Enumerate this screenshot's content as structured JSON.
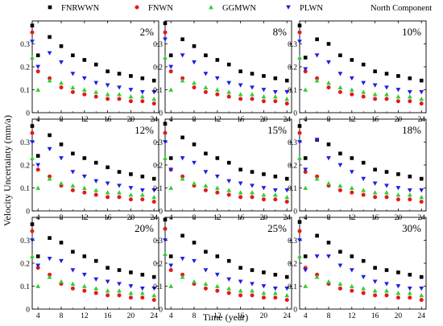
{
  "figure": {
    "ylabel": "Velocity Uncertainty (mm/a)",
    "xlabel": "Time  (year)",
    "component": "North Component"
  },
  "chart_data": {
    "type": "scatter",
    "layout": "3x3 small multiples",
    "x": [
      3,
      4,
      6,
      8,
      10,
      12,
      14,
      16,
      18,
      20,
      22,
      24
    ],
    "xticks": [
      4,
      8,
      12,
      16,
      20,
      24
    ],
    "xlim": [
      3,
      24.8
    ],
    "ylim": [
      0,
      0.4
    ],
    "yticks": [
      0,
      0.1,
      0.2,
      0.3
    ],
    "ytick_labels": [
      "0",
      "0.1",
      "0.2",
      "0.3"
    ],
    "grid": false,
    "legend_position": "top",
    "series_styles": [
      {
        "name": "FNRWWN",
        "marker": "square",
        "color": "#000000"
      },
      {
        "name": "FNWN",
        "marker": "circle",
        "color": "#e31a1c"
      },
      {
        "name": "GGMWN",
        "marker": "triangle-up",
        "color": "#33cc33"
      },
      {
        "name": "PLWN",
        "marker": "triangle-down",
        "color": "#1f1fe0"
      }
    ],
    "panels": [
      {
        "label": "2%",
        "series": [
          {
            "name": "FNRWWN",
            "values": [
              0.38,
              0.25,
              0.33,
              0.29,
              0.25,
              0.23,
              0.21,
              0.18,
              0.17,
              0.16,
              0.15,
              0.14
            ]
          },
          {
            "name": "FNWN",
            "values": [
              0.35,
              0.18,
              0.15,
              0.11,
              0.09,
              0.08,
              0.07,
              0.06,
              0.06,
              0.05,
              0.05,
              0.04
            ]
          },
          {
            "name": "GGMWN",
            "values": [
              0.24,
              0.1,
              0.14,
              0.13,
              0.11,
              0.1,
              0.09,
              0.08,
              0.08,
              0.07,
              0.07,
              0.06
            ]
          },
          {
            "name": "PLWN",
            "values": [
              0.31,
              0.2,
              0.26,
              0.22,
              0.17,
              0.15,
              0.13,
              0.12,
              0.11,
              0.1,
              0.09,
              0.09
            ]
          }
        ]
      },
      {
        "label": "8%",
        "series": [
          {
            "name": "FNRWWN",
            "values": [
              0.39,
              0.25,
              0.32,
              0.29,
              0.25,
              0.23,
              0.21,
              0.18,
              0.17,
              0.16,
              0.15,
              0.14
            ]
          },
          {
            "name": "FNWN",
            "values": [
              0.35,
              0.18,
              0.15,
              0.11,
              0.09,
              0.08,
              0.07,
              0.06,
              0.06,
              0.05,
              0.05,
              0.04
            ]
          },
          {
            "name": "GGMWN",
            "values": [
              0.24,
              0.1,
              0.14,
              0.13,
              0.11,
              0.1,
              0.09,
              0.08,
              0.08,
              0.07,
              0.07,
              0.06
            ]
          },
          {
            "name": "PLWN",
            "values": [
              0.32,
              0.2,
              0.25,
              0.22,
              0.17,
              0.15,
              0.13,
              0.12,
              0.11,
              0.1,
              0.09,
              0.09
            ]
          }
        ]
      },
      {
        "label": "10%",
        "series": [
          {
            "name": "FNRWWN",
            "values": [
              0.38,
              0.24,
              0.32,
              0.3,
              0.25,
              0.23,
              0.21,
              0.18,
              0.17,
              0.16,
              0.15,
              0.14
            ]
          },
          {
            "name": "FNWN",
            "values": [
              0.35,
              0.18,
              0.15,
              0.11,
              0.09,
              0.08,
              0.07,
              0.06,
              0.06,
              0.05,
              0.05,
              0.04
            ]
          },
          {
            "name": "GGMWN",
            "values": [
              0.24,
              0.1,
              0.14,
              0.13,
              0.11,
              0.1,
              0.09,
              0.08,
              0.08,
              0.07,
              0.07,
              0.06
            ]
          },
          {
            "name": "PLWN",
            "values": [
              0.31,
              0.19,
              0.25,
              0.22,
              0.17,
              0.15,
              0.13,
              0.12,
              0.11,
              0.1,
              0.09,
              0.09
            ]
          }
        ]
      },
      {
        "label": "12%",
        "series": [
          {
            "name": "FNRWWN",
            "values": [
              0.37,
              0.24,
              0.33,
              0.29,
              0.25,
              0.23,
              0.21,
              0.19,
              0.17,
              0.16,
              0.15,
              0.14
            ]
          },
          {
            "name": "FNWN",
            "values": [
              0.34,
              0.18,
              0.15,
              0.11,
              0.09,
              0.08,
              0.07,
              0.06,
              0.06,
              0.05,
              0.05,
              0.04
            ]
          },
          {
            "name": "GGMWN",
            "values": [
              0.23,
              0.1,
              0.14,
              0.12,
              0.11,
              0.1,
              0.09,
              0.08,
              0.08,
              0.07,
              0.07,
              0.06
            ]
          },
          {
            "name": "PLWN",
            "values": [
              0.3,
              0.2,
              0.27,
              0.23,
              0.17,
              0.15,
              0.13,
              0.12,
              0.11,
              0.1,
              0.09,
              0.09
            ]
          }
        ]
      },
      {
        "label": "15%",
        "series": [
          {
            "name": "FNRWWN",
            "values": [
              0.38,
              0.23,
              0.32,
              0.29,
              0.25,
              0.23,
              0.21,
              0.18,
              0.17,
              0.16,
              0.15,
              0.14
            ]
          },
          {
            "name": "FNWN",
            "values": [
              0.34,
              0.18,
              0.15,
              0.11,
              0.09,
              0.08,
              0.07,
              0.06,
              0.06,
              0.05,
              0.05,
              0.04
            ]
          },
          {
            "name": "GGMWN",
            "values": [
              0.23,
              0.1,
              0.14,
              0.12,
              0.11,
              0.1,
              0.09,
              0.08,
              0.08,
              0.07,
              0.07,
              0.06
            ]
          },
          {
            "name": "PLWN",
            "values": [
              0.3,
              0.18,
              0.23,
              0.21,
              0.17,
              0.15,
              0.13,
              0.12,
              0.11,
              0.1,
              0.09,
              0.09
            ]
          }
        ]
      },
      {
        "label": "18%",
        "series": [
          {
            "name": "FNRWWN",
            "values": [
              0.37,
              0.23,
              0.31,
              0.29,
              0.25,
              0.23,
              0.21,
              0.18,
              0.17,
              0.16,
              0.15,
              0.14
            ]
          },
          {
            "name": "FNWN",
            "values": [
              0.34,
              0.17,
              0.15,
              0.11,
              0.09,
              0.08,
              0.07,
              0.06,
              0.06,
              0.05,
              0.05,
              0.04
            ]
          },
          {
            "name": "GGMWN",
            "values": [
              0.23,
              0.1,
              0.14,
              0.12,
              0.11,
              0.1,
              0.09,
              0.08,
              0.08,
              0.07,
              0.07,
              0.06
            ]
          },
          {
            "name": "PLWN",
            "values": [
              0.3,
              0.18,
              0.31,
              0.23,
              0.2,
              0.17,
              0.14,
              0.12,
              0.11,
              0.1,
              0.09,
              0.09
            ]
          }
        ]
      },
      {
        "label": "20%",
        "series": [
          {
            "name": "FNRWWN",
            "values": [
              0.37,
              0.23,
              0.31,
              0.29,
              0.25,
              0.23,
              0.21,
              0.18,
              0.17,
              0.16,
              0.15,
              0.14
            ]
          },
          {
            "name": "FNWN",
            "values": [
              0.34,
              0.18,
              0.15,
              0.11,
              0.09,
              0.08,
              0.07,
              0.06,
              0.06,
              0.05,
              0.05,
              0.04
            ]
          },
          {
            "name": "GGMWN",
            "values": [
              0.23,
              0.1,
              0.14,
              0.12,
              0.11,
              0.1,
              0.09,
              0.08,
              0.08,
              0.07,
              0.07,
              0.06
            ]
          },
          {
            "name": "PLWN",
            "values": [
              0.3,
              0.19,
              0.22,
              0.21,
              0.17,
              0.15,
              0.13,
              0.12,
              0.11,
              0.1,
              0.09,
              0.09
            ]
          }
        ]
      },
      {
        "label": "25%",
        "series": [
          {
            "name": "FNRWWN",
            "values": [
              0.39,
              0.23,
              0.32,
              0.29,
              0.25,
              0.23,
              0.21,
              0.18,
              0.17,
              0.16,
              0.15,
              0.14
            ]
          },
          {
            "name": "FNWN",
            "values": [
              0.35,
              0.17,
              0.15,
              0.11,
              0.09,
              0.08,
              0.07,
              0.06,
              0.06,
              0.05,
              0.05,
              0.04
            ]
          },
          {
            "name": "GGMWN",
            "values": [
              0.24,
              0.1,
              0.14,
              0.12,
              0.11,
              0.1,
              0.09,
              0.08,
              0.08,
              0.07,
              0.07,
              0.06
            ]
          },
          {
            "name": "PLWN",
            "values": [
              0.3,
              0.19,
              0.22,
              0.21,
              0.17,
              0.15,
              0.13,
              0.12,
              0.11,
              0.1,
              0.09,
              0.09
            ]
          }
        ]
      },
      {
        "label": "30%",
        "series": [
          {
            "name": "FNRWWN",
            "values": [
              0.38,
              0.23,
              0.32,
              0.29,
              0.25,
              0.23,
              0.21,
              0.18,
              0.17,
              0.16,
              0.15,
              0.14
            ]
          },
          {
            "name": "FNWN",
            "values": [
              0.34,
              0.18,
              0.15,
              0.11,
              0.09,
              0.08,
              0.07,
              0.06,
              0.06,
              0.05,
              0.05,
              0.04
            ]
          },
          {
            "name": "GGMWN",
            "values": [
              0.23,
              0.1,
              0.14,
              0.12,
              0.11,
              0.1,
              0.09,
              0.08,
              0.08,
              0.07,
              0.07,
              0.06
            ]
          },
          {
            "name": "PLWN",
            "values": [
              0.3,
              0.17,
              0.23,
              0.23,
              0.19,
              0.17,
              0.14,
              0.12,
              0.11,
              0.1,
              0.09,
              0.09
            ]
          }
        ]
      }
    ]
  }
}
